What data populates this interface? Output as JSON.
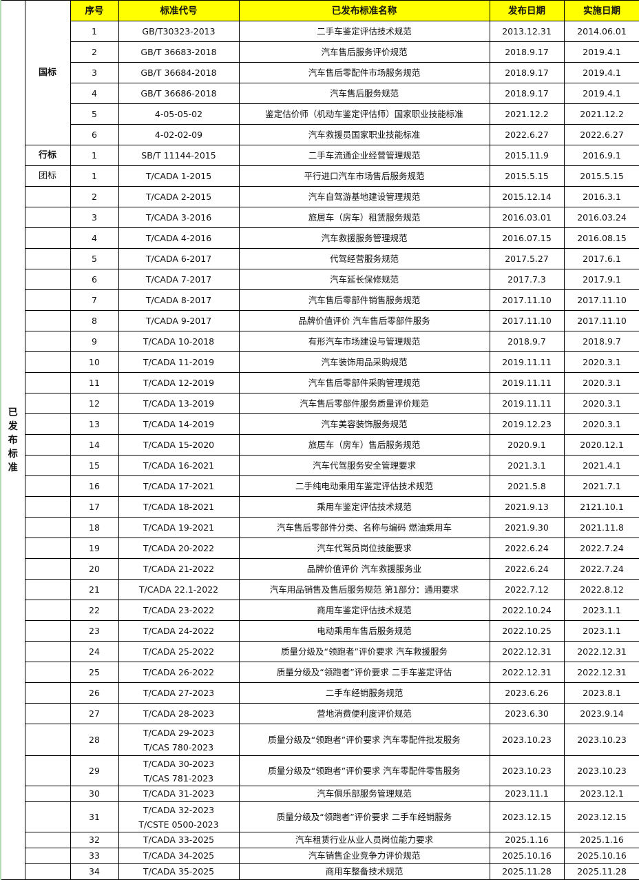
{
  "side_label": "已发布标准",
  "headers": [
    "序号",
    "标准代号",
    "已发布标准名称",
    "发布日期",
    "实施日期"
  ],
  "header_color": "#ffff00",
  "groups": [
    {
      "label": "国标",
      "bold": true,
      "rows": [
        {
          "no": "1",
          "code": "GB/T30323-2013",
          "name": "二手车鉴定评估技术规范",
          "pub": "2013.12.31",
          "impl": "2014.06.01"
        },
        {
          "no": "2",
          "code": "GB/T 36683-2018",
          "name": "汽车售后服务评价规范",
          "pub": "2018.9.17",
          "impl": "2019.4.1"
        },
        {
          "no": "3",
          "code": "GB/T 36684-2018",
          "name": "汽车售后零配件市场服务规范",
          "pub": "2018.9.17",
          "impl": "2019.4.1"
        },
        {
          "no": "4",
          "code": "GB/T 36686-2018",
          "name": "汽车售后服务规范",
          "pub": "2018.9.17",
          "impl": "2019.4.1"
        },
        {
          "no": "5",
          "code": "4-05-05-02",
          "name": "鉴定估价师（机动车鉴定评估师）国家职业技能标准",
          "pub": "2021.12.2",
          "impl": "2021.12.2"
        },
        {
          "no": "6",
          "code": "4-02-02-09",
          "name": "汽车救援员国家职业技能标准",
          "pub": "2022.6.27",
          "impl": "2022.6.27"
        }
      ]
    },
    {
      "label": "行标",
      "bold": true,
      "rows": [
        {
          "no": "1",
          "code": "SB/T 11144-2015",
          "name": "二手车流通企业经营管理规范",
          "pub": "2015.11.9",
          "impl": "2016.9.1"
        }
      ]
    },
    {
      "label": "团标",
      "bold": false,
      "rows": [
        {
          "no": "1",
          "code": "T/CADA 1-2015",
          "name": "平行进口汽车市场售后服务规范",
          "pub": "2015.5.15",
          "impl": "2015.5.15"
        },
        {
          "no": "2",
          "code": "T/CADA 2-2015",
          "name": "汽车自驾游基地建设管理规范",
          "pub": "2015.12.14",
          "impl": "2016.3.1"
        },
        {
          "no": "3",
          "code": "T/CADA 3-2016",
          "name": "旅居车（房车）租赁服务规范",
          "pub": "2016.03.01",
          "impl": "2016.03.24"
        },
        {
          "no": "4",
          "code": "T/CADA 4-2016",
          "name": "汽车救援服务管理规范",
          "pub": "2016.07.15",
          "impl": "2016.08.15"
        },
        {
          "no": "5",
          "code": "T/CADA 6-2017",
          "name": "代驾经营服务规范",
          "pub": "2017.5.27",
          "impl": "2017.6.1"
        },
        {
          "no": "6",
          "code": "T/CADA 7-2017",
          "name": "汽车延长保修规范",
          "pub": "2017.7.3",
          "impl": "2017.9.1"
        },
        {
          "no": "7",
          "code": "T/CADA 8-2017",
          "name": "汽车售后零部件销售服务规范",
          "pub": "2017.11.10",
          "impl": "2017.11.10"
        },
        {
          "no": "8",
          "code": "T/CADA 9-2017",
          "name": "品牌价值评价  汽车售后零部件服务",
          "pub": "2017.11.10",
          "impl": "2017.11.10"
        },
        {
          "no": "9",
          "code": "T/CADA 10-2018",
          "name": "有形汽车市场建设与管理规范",
          "pub": "2018.9.7",
          "impl": "2018.9.7"
        },
        {
          "no": "10",
          "code": "T/CADA 11-2019",
          "name": "汽车装饰用品采购规范",
          "pub": "2019.11.11",
          "impl": "2020.3.1"
        },
        {
          "no": "11",
          "code": "T/CADA 12-2019",
          "name": "汽车售后零部件采购管理规范",
          "pub": "2019.11.11",
          "impl": "2020.3.1"
        },
        {
          "no": "12",
          "code": "T/CADA 13-2019",
          "name": "汽车售后零部件服务质量评价规范",
          "pub": "2019.11.11",
          "impl": "2020.3.1"
        },
        {
          "no": "13",
          "code": "T/CADA 14-2019",
          "name": "汽车美容装饰服务规范",
          "pub": "2019.12.23",
          "impl": "2020.3.1"
        },
        {
          "no": "14",
          "code": "T/CADA 15-2020",
          "name": "旅居车（房车）售后服务规范",
          "pub": "2020.9.1",
          "impl": "2020.12.1"
        },
        {
          "no": "15",
          "code": "T/CADA 16-2021",
          "name": "汽车代驾服务安全管理要求",
          "pub": "2021.3.1",
          "impl": "2021.4.1"
        },
        {
          "no": "16",
          "code": "T/CADA 17-2021",
          "name": "二手纯电动乘用车鉴定评估技术规范",
          "pub": "2021.5.8",
          "impl": "2021.7.1"
        },
        {
          "no": "17",
          "code": "T/CADA 18-2021",
          "name": "乘用车鉴定评估技术规范",
          "pub": "2021.9.13",
          "impl": "2121.10.1"
        },
        {
          "no": "18",
          "code": "T/CADA 19-2021",
          "name": "汽车售后零部件分类、名称与编码 燃油乘用车",
          "pub": "2021.9.30",
          "impl": "2021.11.8"
        },
        {
          "no": "19",
          "code": "T/CADA 20-2022",
          "name": "汽车代驾员岗位技能要求",
          "pub": "2022.6.24",
          "impl": "2022.7.24"
        },
        {
          "no": "20",
          "code": "T/CADA 21-2022",
          "name": "品牌价值评价 汽车救援服务业",
          "pub": "2022.6.24",
          "impl": "2022.7.24"
        },
        {
          "no": "21",
          "code": "T/CADA 22.1-2022",
          "name": "汽车用品销售及售后服务规范 第1部分：通用要求",
          "pub": "2022.7.12",
          "impl": "2022.8.12"
        },
        {
          "no": "22",
          "code": "T/CADA 23-2022",
          "name": "商用车鉴定评估技术规范",
          "pub": "2022.10.24",
          "impl": "2023.1.1"
        },
        {
          "no": "23",
          "code": "T/CADA 24-2022",
          "name": "电动乘用车售后服务规范",
          "pub": "2022.10.25",
          "impl": "2023.1.1"
        },
        {
          "no": "24",
          "code": "T/CADA 25-2022",
          "name": "质量分级及“领跑者”评价要求  汽车救援服务",
          "pub": "2022.12.31",
          "impl": "2022.12.31"
        },
        {
          "no": "25",
          "code": "T/CADA 26-2022",
          "name": "质量分级及“领跑者”评价要求  二手车鉴定评估",
          "pub": "2022.12.31",
          "impl": "2022.12.31"
        },
        {
          "no": "26",
          "code": "T/CADA 27-2023",
          "name": "二手车经销服务规范",
          "pub": "2023.6.26",
          "impl": "2023.8.1"
        },
        {
          "no": "27",
          "code": "T/CADA 28-2023",
          "name": "营地消费便利度评价规范",
          "pub": "2023.6.30",
          "impl": "2023.9.14"
        },
        {
          "no": "28",
          "code": "T/CADA 29-2023\nT/CAS 780-2023",
          "name": "质量分级及“领跑者”评价要求  汽车零配件批发服务",
          "pub": "2023.10.23",
          "impl": "2023.10.23"
        },
        {
          "no": "29",
          "code": "T/CADA 30-2023\nT/CAS 781-2023",
          "name": "质量分级及“领跑者”评价要求  汽车零配件零售服务",
          "pub": "2023.10.23",
          "impl": "2023.10.23"
        },
        {
          "no": "30",
          "code": "T/CADA 31-2023",
          "name": "汽车俱乐部服务管理规范",
          "pub": "2023.11.1",
          "impl": "2023.12.1"
        },
        {
          "no": "31",
          "code": "T/CADA 32-2023\nT/CSTE 0500-2023",
          "name": "质量分级及“领跑者”评价要求  二手车经销服务",
          "pub": "2023.12.15",
          "impl": "2023.12.15"
        },
        {
          "no": "32",
          "code": "T/CADA 33-2025",
          "name": "汽车租赁行业从业人员岗位能力要求",
          "pub": "2025.1.16",
          "impl": "2025.1.16"
        },
        {
          "no": "33",
          "code": "T/CADA 34-2025",
          "name": "汽车销售企业竞争力评价规范",
          "pub": "2025.10.16",
          "impl": "2025.10.16"
        },
        {
          "no": "34",
          "code": "T/CADA 35-2025",
          "name": "商用车整备技术规范",
          "pub": "2025.11.28",
          "impl": "2025.11.28"
        }
      ]
    }
  ]
}
